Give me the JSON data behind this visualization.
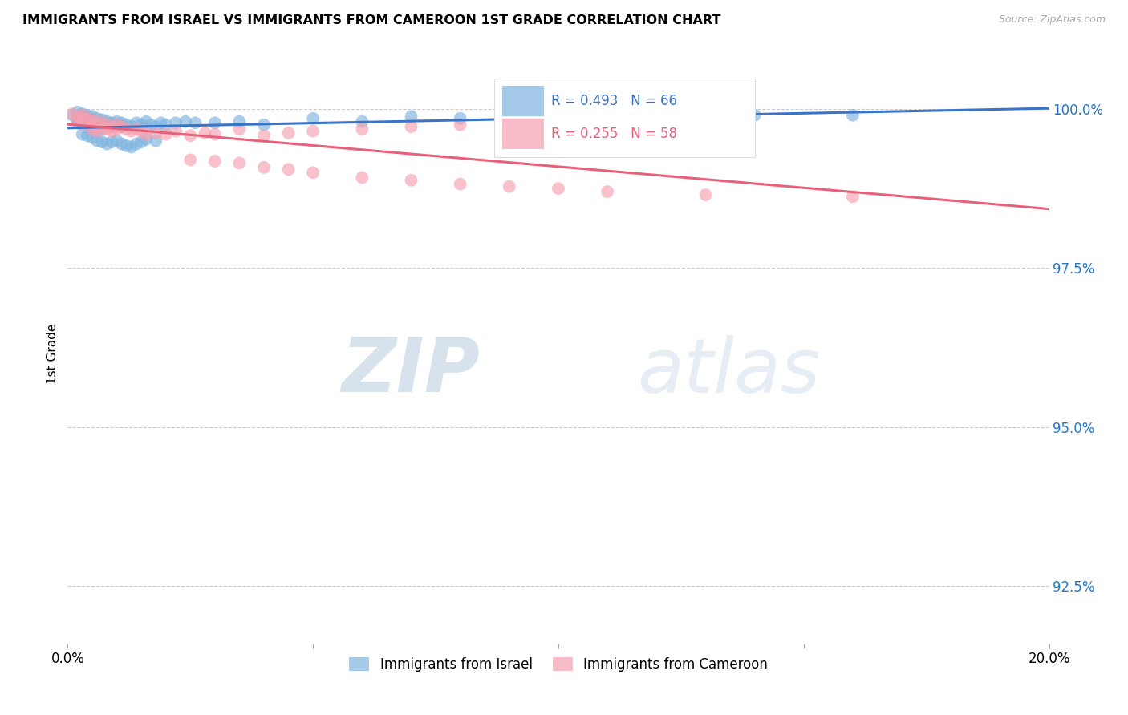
{
  "title": "IMMIGRANTS FROM ISRAEL VS IMMIGRANTS FROM CAMEROON 1ST GRADE CORRELATION CHART",
  "source": "Source: ZipAtlas.com",
  "ylabel": "1st Grade",
  "ytick_labels": [
    "92.5%",
    "95.0%",
    "97.5%",
    "100.0%"
  ],
  "ytick_values": [
    0.925,
    0.95,
    0.975,
    1.0
  ],
  "xmin": 0.0,
  "xmax": 0.2,
  "ymin": 0.916,
  "ymax": 1.007,
  "israel_color": "#7EB3E0",
  "cameroon_color": "#F5A0B0",
  "israel_line_color": "#3A74C8",
  "cameroon_line_color": "#E8607A",
  "israel_R": 0.493,
  "israel_N": 66,
  "cameroon_R": 0.255,
  "cameroon_N": 58,
  "legend_label_israel": "Immigrants from Israel",
  "legend_label_cameroon": "Immigrants from Cameroon",
  "watermark_zip": "ZIP",
  "watermark_atlas": "atlas",
  "israel_scatter_x": [
    0.001,
    0.002,
    0.002,
    0.002,
    0.003,
    0.003,
    0.003,
    0.004,
    0.004,
    0.004,
    0.005,
    0.005,
    0.005,
    0.006,
    0.006,
    0.006,
    0.007,
    0.007,
    0.007,
    0.008,
    0.008,
    0.009,
    0.009,
    0.01,
    0.01,
    0.011,
    0.011,
    0.012,
    0.013,
    0.014,
    0.015,
    0.016,
    0.017,
    0.018,
    0.019,
    0.02,
    0.022,
    0.024,
    0.026,
    0.03,
    0.035,
    0.04,
    0.05,
    0.06,
    0.07,
    0.08,
    0.09,
    0.1,
    0.12,
    0.14,
    0.003,
    0.004,
    0.005,
    0.006,
    0.007,
    0.008,
    0.009,
    0.01,
    0.011,
    0.012,
    0.013,
    0.014,
    0.015,
    0.016,
    0.018,
    0.16
  ],
  "israel_scatter_y": [
    0.999,
    0.9995,
    0.9985,
    0.998,
    0.9992,
    0.9988,
    0.9978,
    0.999,
    0.9985,
    0.9975,
    0.9988,
    0.9982,
    0.9972,
    0.9985,
    0.998,
    0.997,
    0.9983,
    0.9978,
    0.9968,
    0.998,
    0.9975,
    0.9978,
    0.9972,
    0.998,
    0.9975,
    0.9978,
    0.9972,
    0.9975,
    0.9972,
    0.9978,
    0.9975,
    0.998,
    0.9975,
    0.9972,
    0.9978,
    0.9975,
    0.9978,
    0.998,
    0.9978,
    0.9978,
    0.998,
    0.9975,
    0.9985,
    0.998,
    0.9988,
    0.9985,
    0.9988,
    0.999,
    0.9992,
    0.999,
    0.996,
    0.9958,
    0.9955,
    0.995,
    0.9948,
    0.9945,
    0.9948,
    0.995,
    0.9945,
    0.9942,
    0.994,
    0.9945,
    0.9948,
    0.9952,
    0.995,
    0.999
  ],
  "cameroon_scatter_x": [
    0.001,
    0.002,
    0.002,
    0.003,
    0.003,
    0.003,
    0.004,
    0.004,
    0.005,
    0.005,
    0.005,
    0.006,
    0.006,
    0.006,
    0.007,
    0.007,
    0.008,
    0.008,
    0.009,
    0.009,
    0.01,
    0.01,
    0.011,
    0.012,
    0.013,
    0.014,
    0.015,
    0.016,
    0.018,
    0.02,
    0.022,
    0.025,
    0.028,
    0.03,
    0.035,
    0.04,
    0.045,
    0.05,
    0.06,
    0.07,
    0.08,
    0.09,
    0.1,
    0.11,
    0.025,
    0.03,
    0.035,
    0.04,
    0.045,
    0.05,
    0.06,
    0.07,
    0.08,
    0.09,
    0.1,
    0.11,
    0.13,
    0.16
  ],
  "cameroon_scatter_y": [
    0.9992,
    0.9988,
    0.9982,
    0.999,
    0.9985,
    0.9975,
    0.9985,
    0.9978,
    0.9982,
    0.9975,
    0.9968,
    0.998,
    0.9972,
    0.9965,
    0.9978,
    0.997,
    0.9975,
    0.9968,
    0.9972,
    0.9965,
    0.9975,
    0.9968,
    0.9972,
    0.9968,
    0.9965,
    0.9968,
    0.9965,
    0.996,
    0.9962,
    0.996,
    0.9965,
    0.9958,
    0.9962,
    0.996,
    0.9968,
    0.9958,
    0.9962,
    0.9965,
    0.9968,
    0.9972,
    0.9975,
    0.9975,
    0.9978,
    0.9975,
    0.992,
    0.9918,
    0.9915,
    0.9908,
    0.9905,
    0.99,
    0.9892,
    0.9888,
    0.9882,
    0.9878,
    0.9875,
    0.987,
    0.9865,
    0.9862
  ]
}
